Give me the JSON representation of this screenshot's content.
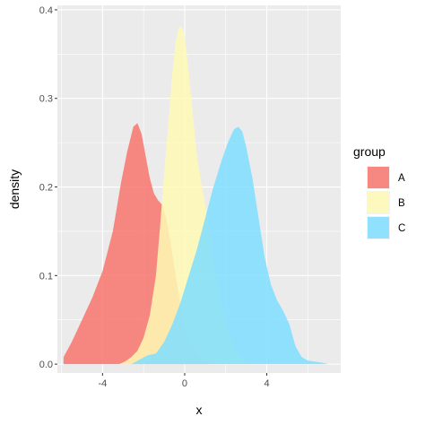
{
  "chart_data": {
    "type": "area",
    "xlabel": "x",
    "ylabel": "density",
    "xlim": [
      -6.2,
      7.6
    ],
    "ylim": [
      -0.01,
      0.405
    ],
    "x_ticks": [
      -4,
      0,
      4
    ],
    "x_tick_labels": [
      "-4",
      "0",
      "4"
    ],
    "y_ticks": [
      0.0,
      0.1,
      0.2,
      0.3,
      0.4
    ],
    "y_tick_labels": [
      "0.0",
      "0.1",
      "0.2",
      "0.3",
      "0.4"
    ],
    "grid": true,
    "legend": {
      "title": "group",
      "placement": "right"
    },
    "series": [
      {
        "name": "A",
        "color": "#F8766D",
        "x": [
          -5.9,
          -5.5,
          -5.0,
          -4.5,
          -4.0,
          -3.5,
          -3.1,
          -2.8,
          -2.5,
          -2.3,
          -2.1,
          -1.9,
          -1.7,
          -1.5,
          -1.3,
          -1.1,
          -0.9,
          -0.7,
          -0.5,
          -0.3,
          -0.1,
          0.1,
          0.3,
          0.6,
          0.9,
          1.2
        ],
        "y": [
          0.008,
          0.025,
          0.05,
          0.075,
          0.105,
          0.15,
          0.205,
          0.24,
          0.268,
          0.272,
          0.26,
          0.235,
          0.21,
          0.193,
          0.185,
          0.18,
          0.165,
          0.14,
          0.11,
          0.08,
          0.055,
          0.035,
          0.022,
          0.012,
          0.006,
          0.0
        ]
      },
      {
        "name": "B",
        "color": "#FFFAB5",
        "x": [
          -3.2,
          -2.9,
          -2.6,
          -2.3,
          -2.0,
          -1.7,
          -1.4,
          -1.2,
          -1.0,
          -0.8,
          -0.6,
          -0.45,
          -0.3,
          -0.2,
          -0.1,
          0.0,
          0.2,
          0.4,
          0.6,
          0.8,
          1.0,
          1.2,
          1.4,
          1.7,
          2.0,
          2.3,
          2.6,
          2.9,
          3.2
        ],
        "y": [
          0.0,
          0.003,
          0.008,
          0.015,
          0.03,
          0.055,
          0.1,
          0.155,
          0.215,
          0.27,
          0.33,
          0.362,
          0.378,
          0.382,
          0.378,
          0.37,
          0.33,
          0.28,
          0.235,
          0.205,
          0.18,
          0.15,
          0.115,
          0.075,
          0.045,
          0.025,
          0.012,
          0.005,
          0.0
        ]
      },
      {
        "name": "C",
        "color": "#7FDEFF",
        "x": [
          -2.6,
          -2.2,
          -1.8,
          -1.4,
          -1.0,
          -0.6,
          -0.2,
          0.2,
          0.6,
          1.0,
          1.4,
          1.8,
          2.1,
          2.4,
          2.6,
          2.8,
          3.0,
          3.3,
          3.6,
          3.9,
          4.2,
          4.5,
          4.8,
          5.1,
          5.4,
          5.7,
          6.0,
          6.3,
          6.6,
          7.0
        ],
        "y": [
          0.0,
          0.005,
          0.01,
          0.012,
          0.025,
          0.045,
          0.07,
          0.1,
          0.13,
          0.165,
          0.2,
          0.23,
          0.25,
          0.265,
          0.268,
          0.263,
          0.245,
          0.21,
          0.165,
          0.12,
          0.09,
          0.072,
          0.06,
          0.045,
          0.02,
          0.008,
          0.004,
          0.003,
          0.002,
          0.0
        ]
      }
    ]
  },
  "colors": {
    "panel_background": "#EBEBEB",
    "grid_major": "#FFFFFF",
    "area_opacity": 0.85
  }
}
